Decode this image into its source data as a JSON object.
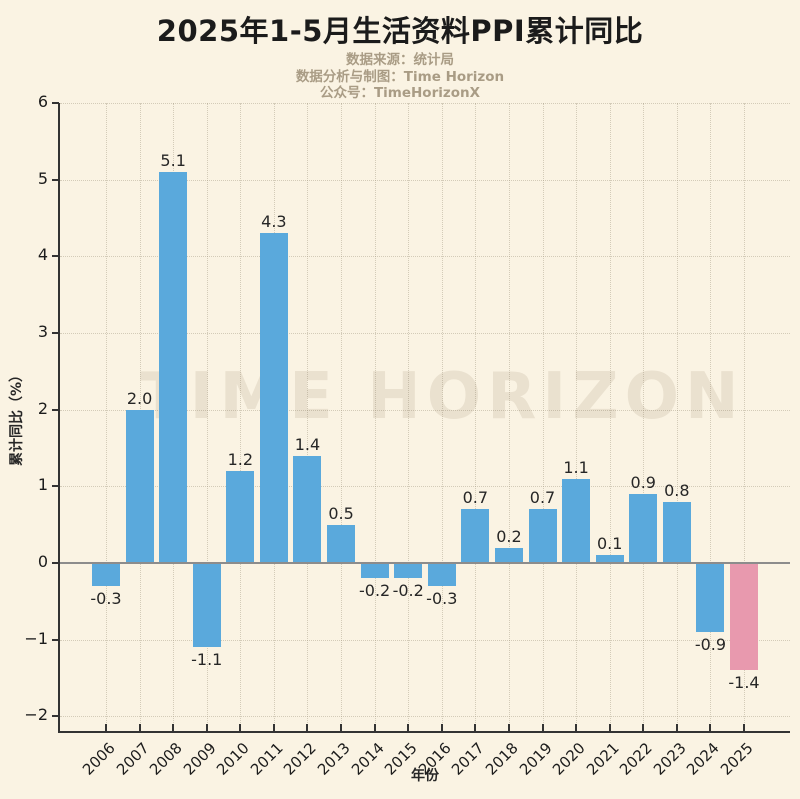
{
  "header": {
    "title": "2025年1-5月生活资料PPI累计同比",
    "subtitle_lines": [
      "数据来源：统计局",
      "数据分析与制图：Time Horizon",
      "公众号：TimeHorizonX"
    ]
  },
  "watermark": "TIME HORIZON",
  "colors": {
    "background": "#FAF3E3",
    "bar": "#5AA9DC",
    "highlight": "#E899AE",
    "zero_line": "#8C8C8C",
    "spine": "#333333",
    "grid": "rgba(165,155,130,0.45)",
    "title_text": "#1B1B1B",
    "subtitle_text": "#A99C85",
    "tick_text": "#1C1C1C"
  },
  "chart_data": {
    "type": "bar",
    "title": "2025年1-5月生活资料PPI累计同比",
    "categories": [
      "2006",
      "2007",
      "2008",
      "2009",
      "2010",
      "2011",
      "2012",
      "2013",
      "2014",
      "2015",
      "2016",
      "2017",
      "2018",
      "2019",
      "2020",
      "2021",
      "2022",
      "2023",
      "2024",
      "2025"
    ],
    "values": [
      -0.3,
      2.0,
      5.1,
      -1.1,
      1.2,
      4.3,
      1.4,
      0.5,
      -0.2,
      -0.2,
      -0.3,
      0.7,
      0.2,
      0.7,
      1.1,
      0.1,
      0.9,
      0.8,
      -0.9,
      -1.4
    ],
    "bar_labels": [
      "-0.3",
      "2.0",
      "5.1",
      "-1.1",
      "1.2",
      "4.3",
      "1.4",
      "0.5",
      "-0.2",
      "-0.2",
      "-0.3",
      "0.7",
      "0.2",
      "0.7",
      "1.1",
      "0.1",
      "0.9",
      "0.8",
      "-0.9",
      "-1.4"
    ],
    "highlight_index": 19,
    "bar_color": "#5AA9DC",
    "highlight_color": "#E899AE",
    "xlabel": "年份",
    "ylabel": "累计同比（%）",
    "ylim": [
      -2.2,
      6
    ],
    "yticks": [
      6,
      5,
      4,
      3,
      2,
      1,
      0,
      -1,
      -2
    ],
    "ytick_labels": [
      "6",
      "5",
      "4",
      "3",
      "2",
      "1",
      "0",
      "−1",
      "−2"
    ],
    "grid": true,
    "legend": "none"
  }
}
